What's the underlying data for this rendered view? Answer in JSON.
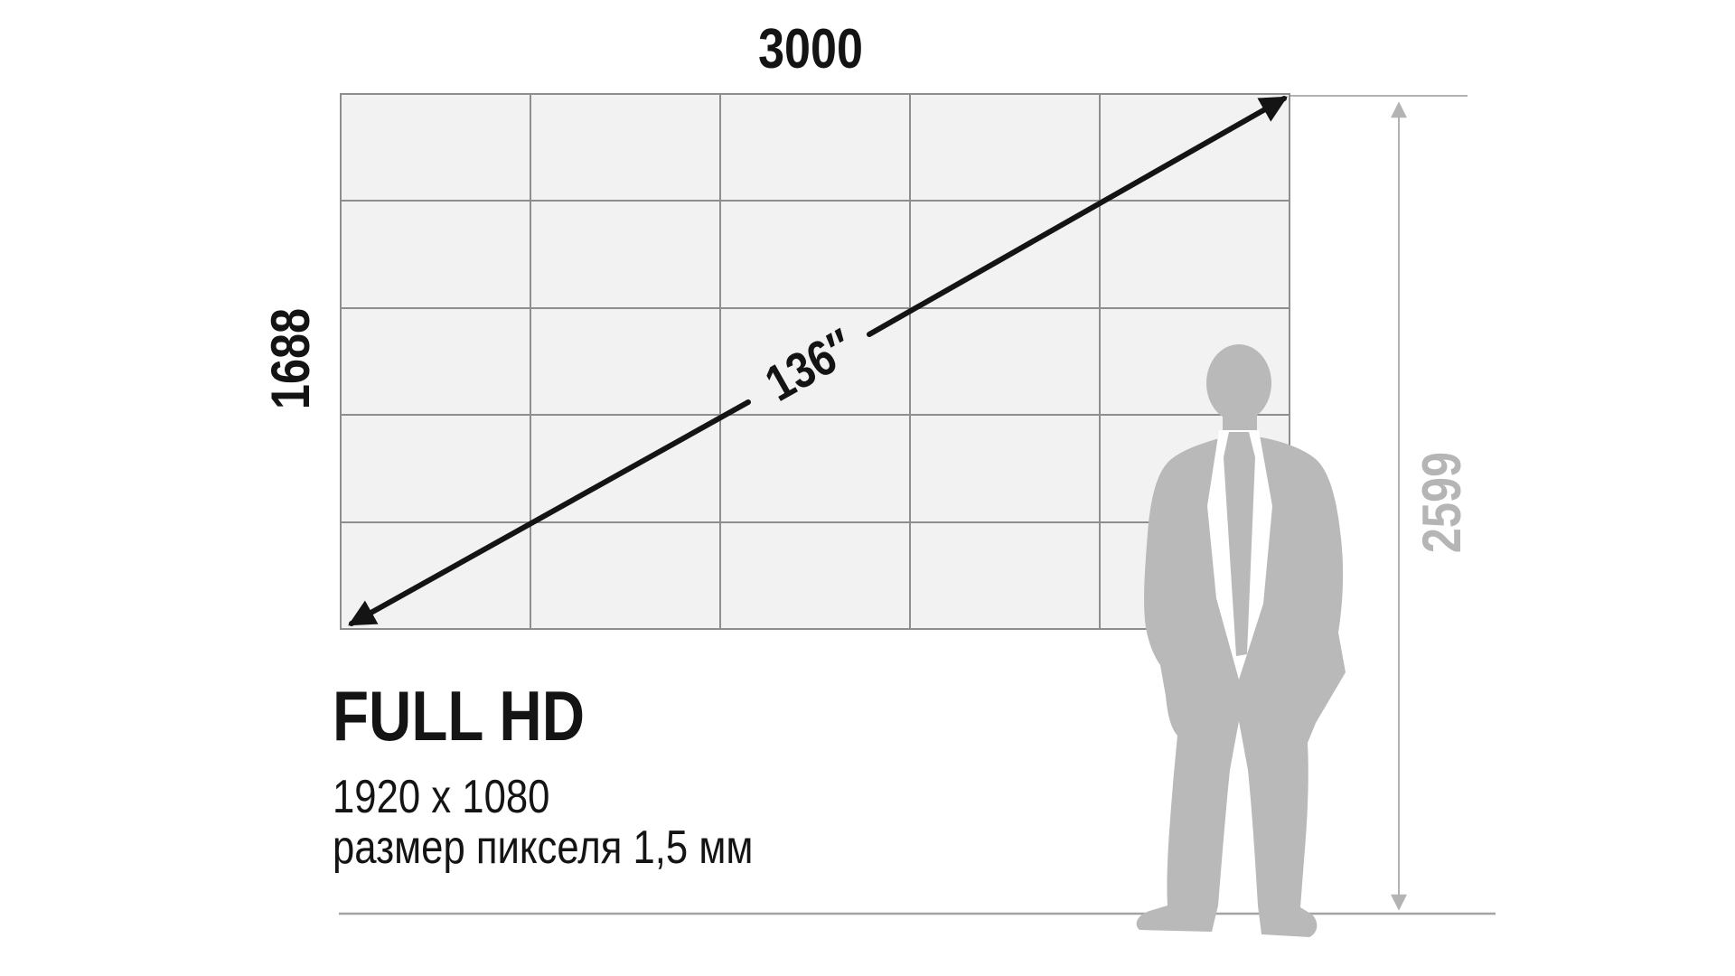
{
  "video_wall": {
    "columns": 5,
    "rows": 5
  },
  "dimensions": {
    "width_mm": "3000",
    "height_mm": "1688",
    "diagonal_inches": "136″",
    "mount_top_height_mm": "2599"
  },
  "title_block": {
    "heading": "FULL HD",
    "resolution": "1920 x 1080",
    "pixel_size": "размер пикселя 1,5 мм"
  },
  "colors": {
    "background": "#ffffff",
    "panel_fill": "#f2f2f2",
    "grid_line": "#8e8e8e",
    "dimension_line": "#b3b3b3",
    "dimension_text_muted": "#b5b5b5",
    "text_primary": "#141414",
    "silhouette": "#b9b9b9"
  }
}
